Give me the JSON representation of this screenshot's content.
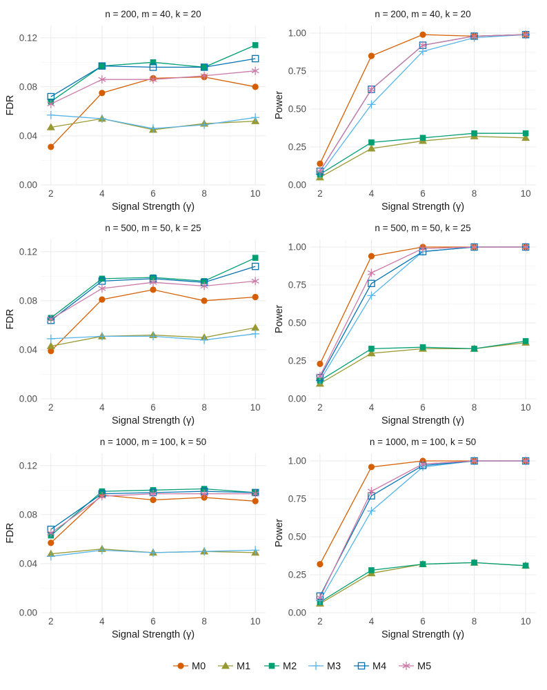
{
  "colors": {
    "M0": "#D55E00",
    "M1": "#999933",
    "M2": "#009E73",
    "M3": "#56B4E9",
    "M4": "#0072B2",
    "M5": "#CC79A7",
    "grid": "#ebebeb"
  },
  "legend": {
    "items": [
      {
        "key": "M0",
        "label": "M0",
        "marker": "circle"
      },
      {
        "key": "M1",
        "label": "M1",
        "marker": "triangle"
      },
      {
        "key": "M2",
        "label": "M2",
        "marker": "square-filled"
      },
      {
        "key": "M3",
        "label": "M3",
        "marker": "plus"
      },
      {
        "key": "M4",
        "label": "M4",
        "marker": "square-open"
      },
      {
        "key": "M5",
        "label": "M5",
        "marker": "asterisk"
      }
    ],
    "position": "bottom"
  },
  "chart_data": [
    {
      "type": "line",
      "panel": "fdr-1",
      "title": "n = 200, m = 40, k = 20",
      "xlabel": "Signal Strength (γ)",
      "ylabel": "FDR",
      "x": [
        2,
        4,
        6,
        8,
        10
      ],
      "xticks": [
        "2",
        "4",
        "6",
        "8",
        "10"
      ],
      "yticks": [
        "0.00",
        "0.04",
        "0.08",
        "0.12"
      ],
      "ylim": [
        0,
        0.13
      ],
      "series": [
        {
          "name": "M0",
          "values": [
            0.031,
            0.075,
            0.087,
            0.088,
            0.08
          ]
        },
        {
          "name": "M1",
          "values": [
            0.047,
            0.054,
            0.045,
            0.05,
            0.052
          ]
        },
        {
          "name": "M2",
          "values": [
            0.068,
            0.097,
            0.1,
            0.096,
            0.114
          ]
        },
        {
          "name": "M3",
          "values": [
            0.057,
            0.054,
            0.046,
            0.049,
            0.055
          ]
        },
        {
          "name": "M4",
          "values": [
            0.072,
            0.097,
            0.096,
            0.096,
            0.103
          ]
        },
        {
          "name": "M5",
          "values": [
            0.066,
            0.086,
            0.086,
            0.089,
            0.093
          ]
        }
      ]
    },
    {
      "type": "line",
      "panel": "power-1",
      "title": "n = 200, m = 40, k = 20",
      "xlabel": "Signal Strength (γ)",
      "ylabel": "Power",
      "x": [
        2,
        4,
        6,
        8,
        10
      ],
      "xticks": [
        "2",
        "4",
        "6",
        "8",
        "10"
      ],
      "yticks": [
        "0.00",
        "0.25",
        "0.50",
        "0.75",
        "1.00"
      ],
      "ylim": [
        0,
        1.05
      ],
      "series": [
        {
          "name": "M0",
          "values": [
            0.14,
            0.85,
            0.99,
            0.98,
            0.99
          ]
        },
        {
          "name": "M1",
          "values": [
            0.05,
            0.24,
            0.29,
            0.32,
            0.31
          ]
        },
        {
          "name": "M2",
          "values": [
            0.07,
            0.28,
            0.31,
            0.34,
            0.34
          ]
        },
        {
          "name": "M3",
          "values": [
            0.07,
            0.53,
            0.88,
            0.97,
            0.99
          ]
        },
        {
          "name": "M4",
          "values": [
            0.09,
            0.63,
            0.92,
            0.98,
            0.99
          ]
        },
        {
          "name": "M5",
          "values": [
            0.09,
            0.63,
            0.92,
            0.98,
            0.99
          ]
        }
      ]
    },
    {
      "type": "line",
      "panel": "fdr-2",
      "title": "n = 500, m = 50, k = 25",
      "xlabel": "Signal Strength (γ)",
      "ylabel": "FDR",
      "x": [
        2,
        4,
        6,
        8,
        10
      ],
      "xticks": [
        "2",
        "4",
        "6",
        "8",
        "10"
      ],
      "yticks": [
        "0.00",
        "0.04",
        "0.08",
        "0.12"
      ],
      "ylim": [
        0,
        0.13
      ],
      "series": [
        {
          "name": "M0",
          "values": [
            0.039,
            0.081,
            0.089,
            0.08,
            0.083
          ]
        },
        {
          "name": "M1",
          "values": [
            0.043,
            0.051,
            0.052,
            0.05,
            0.058
          ]
        },
        {
          "name": "M2",
          "values": [
            0.066,
            0.098,
            0.099,
            0.096,
            0.115
          ]
        },
        {
          "name": "M3",
          "values": [
            0.049,
            0.051,
            0.051,
            0.048,
            0.053
          ]
        },
        {
          "name": "M4",
          "values": [
            0.064,
            0.096,
            0.098,
            0.095,
            0.108
          ]
        },
        {
          "name": "M5",
          "values": [
            0.065,
            0.09,
            0.095,
            0.092,
            0.096
          ]
        }
      ]
    },
    {
      "type": "line",
      "panel": "power-2",
      "title": "n = 500, m = 50, k = 25",
      "xlabel": "Signal Strength (γ)",
      "ylabel": "Power",
      "x": [
        2,
        4,
        6,
        8,
        10
      ],
      "xticks": [
        "2",
        "4",
        "6",
        "8",
        "10"
      ],
      "yticks": [
        "0.00",
        "0.25",
        "0.50",
        "0.75",
        "1.00"
      ],
      "ylim": [
        0,
        1.05
      ],
      "series": [
        {
          "name": "M0",
          "values": [
            0.23,
            0.94,
            1.0,
            1.0,
            1.0
          ]
        },
        {
          "name": "M1",
          "values": [
            0.1,
            0.3,
            0.33,
            0.33,
            0.37
          ]
        },
        {
          "name": "M2",
          "values": [
            0.12,
            0.33,
            0.34,
            0.33,
            0.38
          ]
        },
        {
          "name": "M3",
          "values": [
            0.12,
            0.68,
            0.97,
            1.0,
            1.0
          ]
        },
        {
          "name": "M4",
          "values": [
            0.14,
            0.76,
            0.97,
            1.0,
            1.0
          ]
        },
        {
          "name": "M5",
          "values": [
            0.15,
            0.83,
            0.99,
            1.0,
            1.0
          ]
        }
      ]
    },
    {
      "type": "line",
      "panel": "fdr-3",
      "title": "n = 1000, m = 100, k = 50",
      "xlabel": "Signal Strength (γ)",
      "ylabel": "FDR",
      "x": [
        2,
        4,
        6,
        8,
        10
      ],
      "xticks": [
        "2",
        "4",
        "6",
        "8",
        "10"
      ],
      "yticks": [
        "0.00",
        "0.04",
        "0.08",
        "0.12"
      ],
      "ylim": [
        0,
        0.13
      ],
      "series": [
        {
          "name": "M0",
          "values": [
            0.057,
            0.096,
            0.092,
            0.094,
            0.091
          ]
        },
        {
          "name": "M1",
          "values": [
            0.048,
            0.052,
            0.049,
            0.05,
            0.049
          ]
        },
        {
          "name": "M2",
          "values": [
            0.063,
            0.099,
            0.1,
            0.101,
            0.098
          ]
        },
        {
          "name": "M3",
          "values": [
            0.046,
            0.051,
            0.049,
            0.05,
            0.051
          ]
        },
        {
          "name": "M4",
          "values": [
            0.068,
            0.097,
            0.098,
            0.099,
            0.098
          ]
        },
        {
          "name": "M5",
          "values": [
            0.065,
            0.095,
            0.097,
            0.097,
            0.097
          ]
        }
      ]
    },
    {
      "type": "line",
      "panel": "power-3",
      "title": "n = 1000, m = 100, k = 50",
      "xlabel": "Signal Strength (γ)",
      "ylabel": "Power",
      "x": [
        2,
        4,
        6,
        8,
        10
      ],
      "xticks": [
        "2",
        "4",
        "6",
        "8",
        "10"
      ],
      "yticks": [
        "0.00",
        "0.25",
        "0.50",
        "0.75",
        "1.00"
      ],
      "ylim": [
        0,
        1.05
      ],
      "series": [
        {
          "name": "M0",
          "values": [
            0.32,
            0.96,
            1.0,
            1.0,
            1.0
          ]
        },
        {
          "name": "M1",
          "values": [
            0.06,
            0.26,
            0.32,
            0.33,
            0.31
          ]
        },
        {
          "name": "M2",
          "values": [
            0.07,
            0.28,
            0.32,
            0.33,
            0.31
          ]
        },
        {
          "name": "M3",
          "values": [
            0.08,
            0.67,
            0.96,
            1.0,
            1.0
          ]
        },
        {
          "name": "M4",
          "values": [
            0.11,
            0.77,
            0.97,
            1.0,
            1.0
          ]
        },
        {
          "name": "M5",
          "values": [
            0.1,
            0.8,
            0.98,
            1.0,
            1.0
          ]
        }
      ]
    }
  ]
}
